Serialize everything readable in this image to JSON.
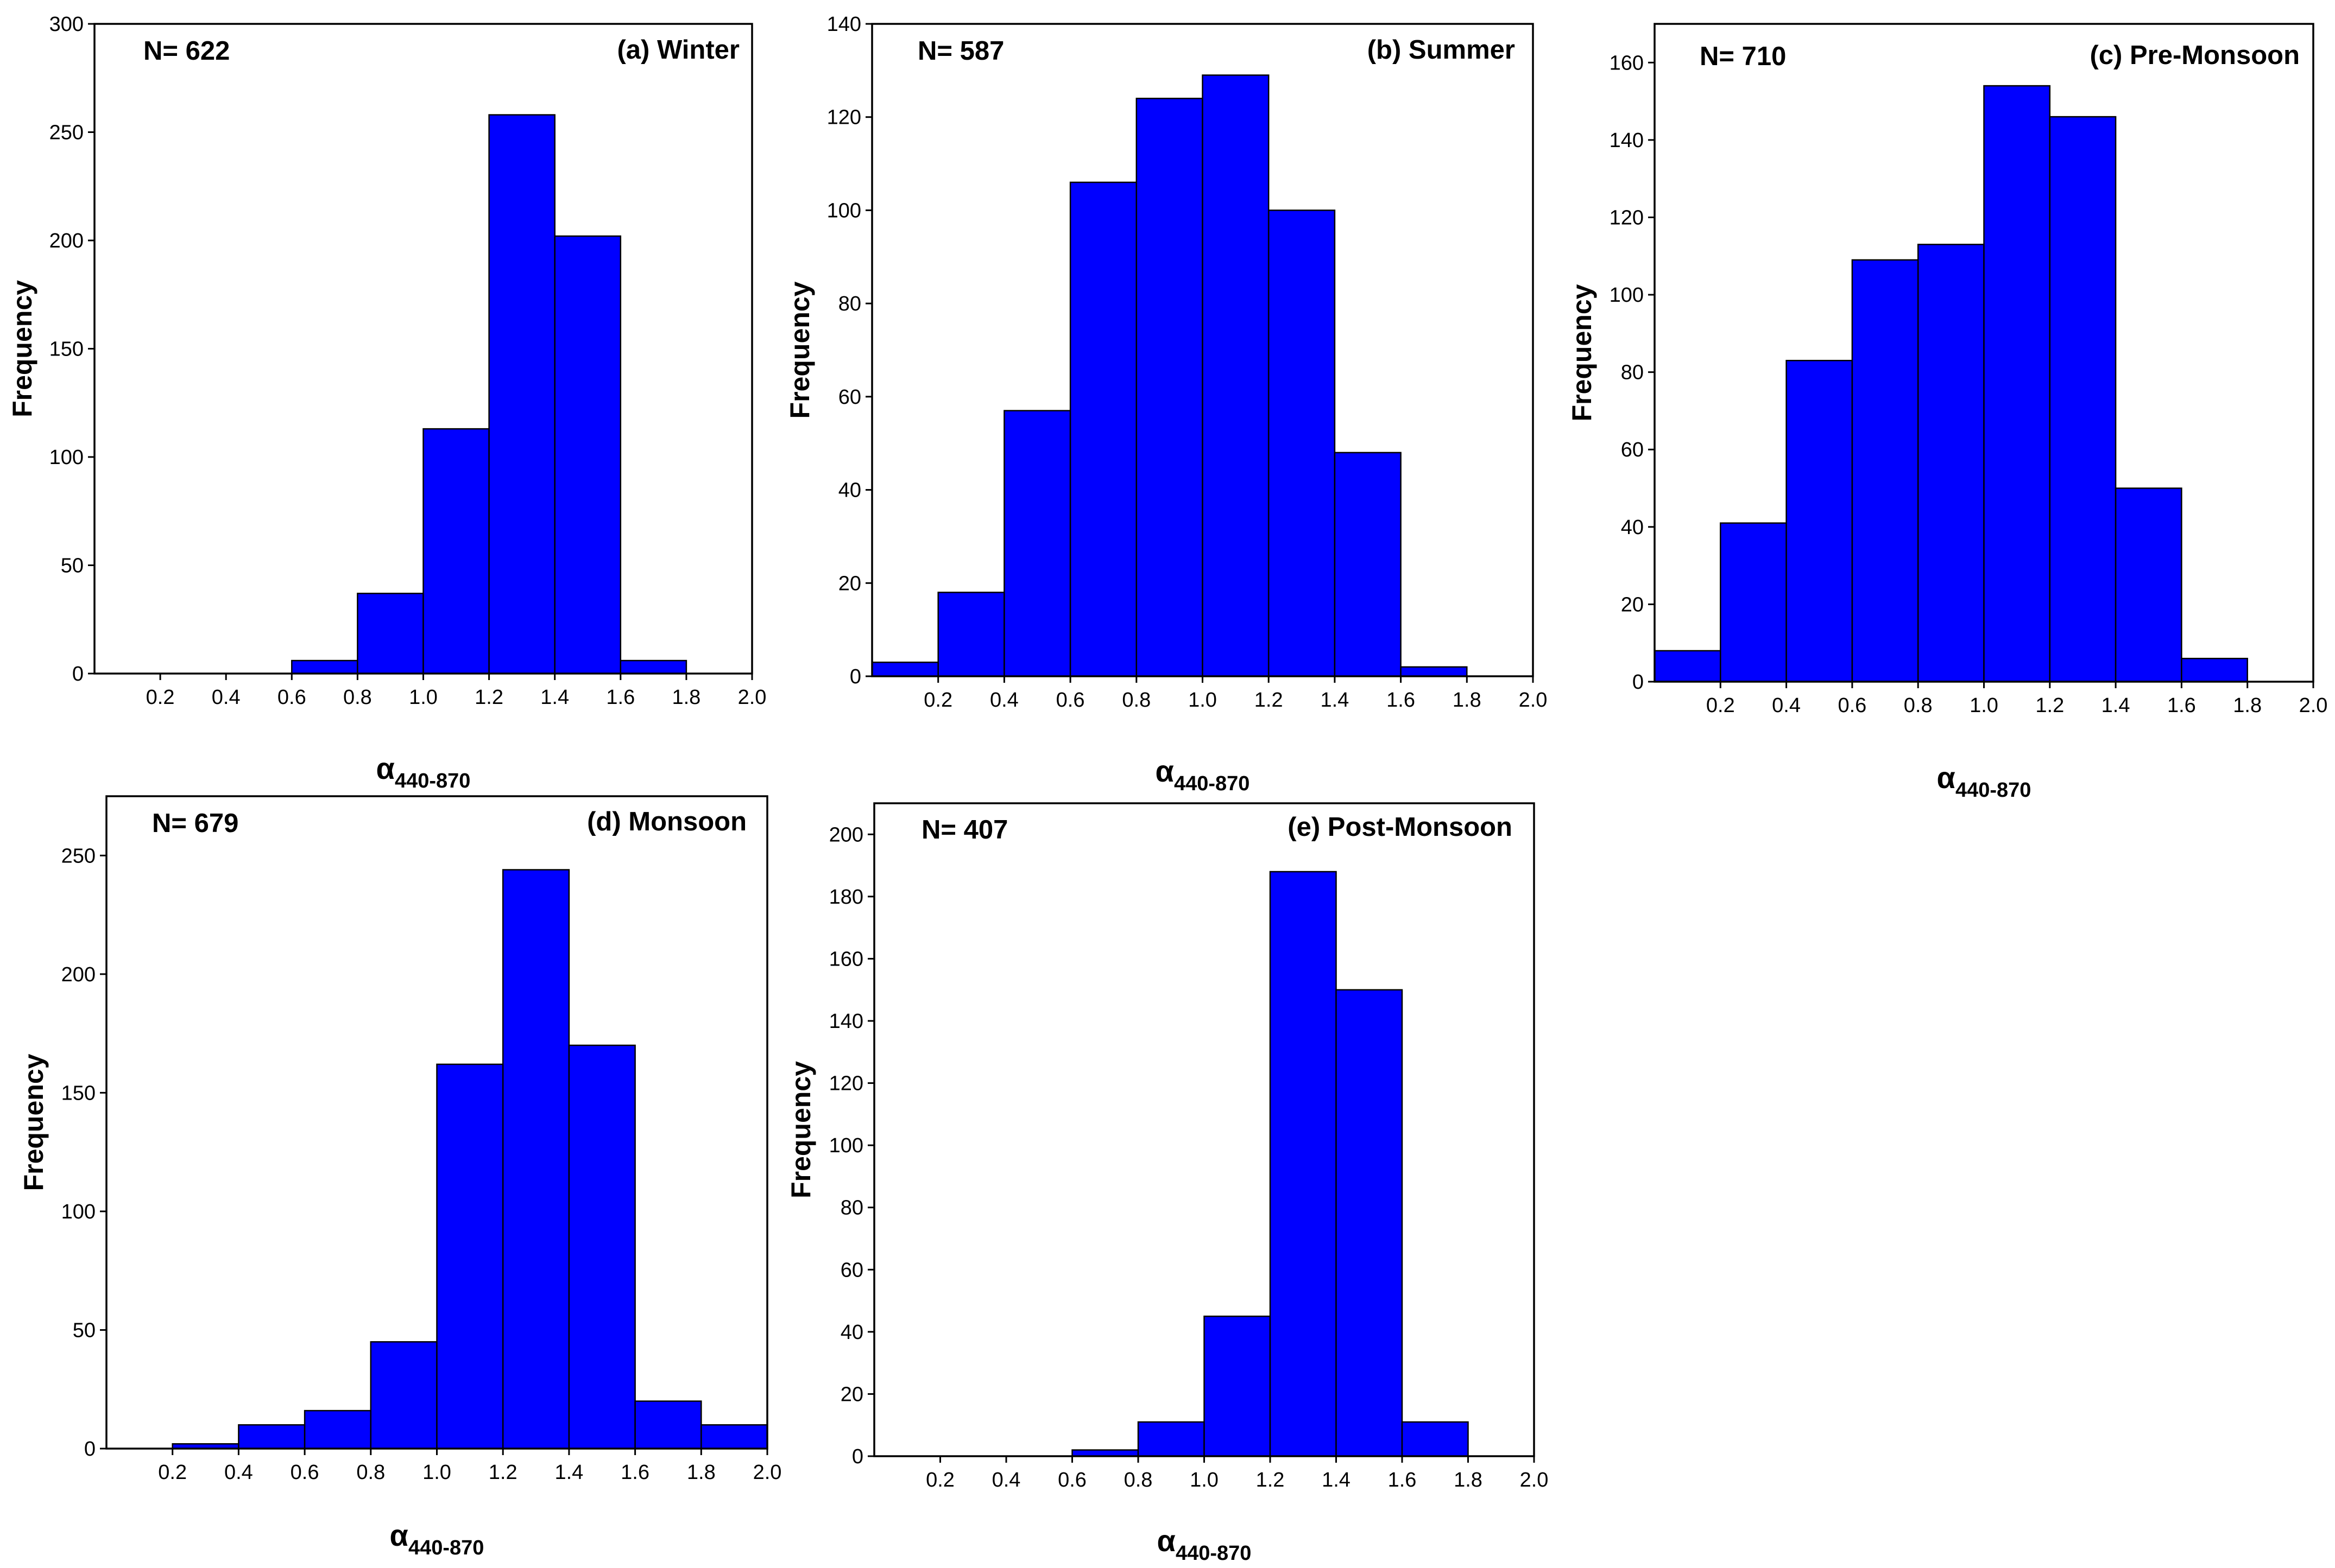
{
  "figure": {
    "description_domain": "histograms"
  },
  "chart_data": [
    {
      "type": "bar",
      "title": "(a) Winter",
      "n_label": "N= 622",
      "ylabel": "Frequency",
      "xlabel": {
        "main": "α",
        "sub": "440-870"
      },
      "bin_edges": [
        0.0,
        0.2,
        0.4,
        0.6,
        0.8,
        1.0,
        1.2,
        1.4,
        1.6,
        1.8,
        2.0
      ],
      "values": [
        0,
        0,
        0,
        6,
        37,
        113,
        258,
        202,
        6,
        0
      ],
      "xlim": [
        0.0,
        2.0
      ],
      "xticks": [
        "0.2",
        "0.4",
        "0.6",
        "0.8",
        "1.0",
        "1.2",
        "1.4",
        "1.6",
        "1.8",
        "2.0"
      ],
      "ylim": [
        0,
        300
      ],
      "yticks": [
        0,
        50,
        100,
        150,
        200,
        250,
        300
      ],
      "bar_color": "#0000ff"
    },
    {
      "type": "bar",
      "title": "(b) Summer",
      "n_label": "N= 587",
      "ylabel": "Frequency",
      "xlabel": {
        "main": "α",
        "sub": "440-870"
      },
      "bin_edges": [
        0.0,
        0.2,
        0.4,
        0.6,
        0.8,
        1.0,
        1.2,
        1.4,
        1.6,
        1.8,
        2.0
      ],
      "values": [
        3,
        18,
        57,
        106,
        124,
        129,
        100,
        48,
        2,
        0
      ],
      "xlim": [
        0.0,
        2.0
      ],
      "xticks": [
        "0.2",
        "0.4",
        "0.6",
        "0.8",
        "1.0",
        "1.2",
        "1.4",
        "1.6",
        "1.8",
        "2.0"
      ],
      "ylim": [
        0,
        140
      ],
      "yticks": [
        0,
        20,
        40,
        60,
        80,
        100,
        120,
        140
      ],
      "bar_color": "#0000ff"
    },
    {
      "type": "bar",
      "title": "(c) Pre-Monsoon",
      "n_label": "N= 710",
      "ylabel": "Frequency",
      "xlabel": {
        "main": "α",
        "sub": "440-870"
      },
      "bin_edges": [
        0.0,
        0.2,
        0.4,
        0.6,
        0.8,
        1.0,
        1.2,
        1.4,
        1.6,
        1.8,
        2.0
      ],
      "values": [
        8,
        41,
        83,
        109,
        113,
        154,
        146,
        50,
        6,
        0
      ],
      "xlim": [
        0.0,
        2.0
      ],
      "xticks": [
        "0.2",
        "0.4",
        "0.6",
        "0.8",
        "1.0",
        "1.2",
        "1.4",
        "1.6",
        "1.8",
        "2.0"
      ],
      "ylim": [
        0,
        170
      ],
      "yticks": [
        0,
        20,
        40,
        60,
        80,
        100,
        120,
        140,
        160
      ],
      "bar_color": "#0000ff"
    },
    {
      "type": "bar",
      "title": "(d) Monsoon",
      "n_label": "N= 679",
      "ylabel": "Frequency",
      "xlabel": {
        "main": "α",
        "sub": "440-870"
      },
      "bin_edges": [
        0.0,
        0.2,
        0.4,
        0.6,
        0.8,
        1.0,
        1.2,
        1.4,
        1.6,
        1.8,
        2.0
      ],
      "values": [
        0,
        2,
        10,
        16,
        45,
        162,
        244,
        170,
        20,
        10
      ],
      "xlim": [
        0.0,
        2.0
      ],
      "xticks": [
        "0.2",
        "0.4",
        "0.6",
        "0.8",
        "1.0",
        "1.2",
        "1.4",
        "1.6",
        "1.8",
        "2.0"
      ],
      "ylim": [
        0,
        275
      ],
      "yticks": [
        0,
        50,
        100,
        150,
        200,
        250
      ],
      "bar_color": "#0000ff"
    },
    {
      "type": "bar",
      "title": "(e) Post-Monsoon",
      "n_label": "N= 407",
      "ylabel": "Frequency",
      "xlabel": {
        "main": "α",
        "sub": "440-870"
      },
      "bin_edges": [
        0.0,
        0.2,
        0.4,
        0.6,
        0.8,
        1.0,
        1.2,
        1.4,
        1.6,
        1.8,
        2.0
      ],
      "values": [
        0,
        0,
        0,
        2,
        11,
        45,
        188,
        150,
        11,
        0
      ],
      "xlim": [
        0.0,
        2.0
      ],
      "xticks": [
        "0.2",
        "0.4",
        "0.6",
        "0.8",
        "1.0",
        "1.2",
        "1.4",
        "1.6",
        "1.8",
        "2.0"
      ],
      "ylim": [
        0,
        210
      ],
      "yticks": [
        0,
        20,
        40,
        60,
        80,
        100,
        120,
        140,
        160,
        180,
        200
      ],
      "bar_color": "#0000ff"
    }
  ]
}
